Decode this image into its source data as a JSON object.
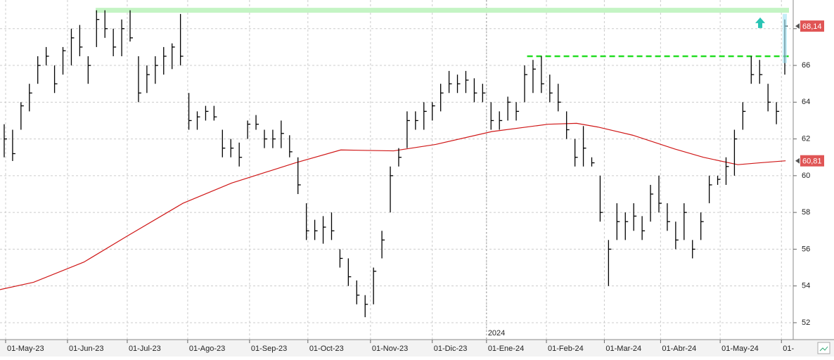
{
  "chart_data": {
    "type": "ohlc",
    "year_label": "2024",
    "color": "#000000",
    "low": [
      61.0,
      60.8,
      62.5,
      63.5,
      65.0,
      66.0,
      64.5,
      65.5,
      66.0,
      66.5,
      65.0,
      67.0,
      67.5,
      66.5,
      66.5,
      67.3,
      64.0,
      64.5,
      65.0,
      65.5,
      65.8,
      66.0,
      62.5,
      62.5,
      63.0,
      63.0,
      61.0,
      61.0,
      60.5,
      62.0,
      62.5,
      61.5,
      61.5,
      61.5,
      61.0,
      59.0,
      56.5,
      56.5,
      56.3,
      56.5,
      55.0,
      54.0,
      53.0,
      52.3,
      53.0,
      55.5,
      58.0,
      60.5,
      61.5,
      62.5,
      62.5,
      63.0,
      63.5,
      64.5,
      64.5,
      64.5,
      64.0,
      64.0,
      62.5,
      62.5,
      63.0,
      63.0,
      64.0,
      64.5,
      64.5,
      64.0,
      63.5,
      62.0,
      60.5,
      60.5,
      60.5,
      57.5,
      54.0,
      56.5,
      56.5,
      57.0,
      56.5,
      57.5,
      58.0,
      57.0,
      56.0,
      56.5,
      55.5,
      56.5,
      58.5,
      59.5,
      59.5,
      60.0,
      62.5,
      65.0,
      65.0,
      63.5,
      62.8,
      65.5
    ],
    "high": [
      62.8,
      62.5,
      64.0,
      65.0,
      66.5,
      67.0,
      66.0,
      67.0,
      68.0,
      68.2,
      66.5,
      69.0,
      69.0,
      68.0,
      68.5,
      69.0,
      66.5,
      66.0,
      66.5,
      67.0,
      67.2,
      68.8,
      64.5,
      63.5,
      63.8,
      63.8,
      62.5,
      62.0,
      61.8,
      63.0,
      63.3,
      62.5,
      62.5,
      63.0,
      62.2,
      61.0,
      58.5,
      57.6,
      57.8,
      58.0,
      56.0,
      55.5,
      54.3,
      53.5,
      55.0,
      57.0,
      60.5,
      61.5,
      63.5,
      63.5,
      64.0,
      64.0,
      65.0,
      65.7,
      65.5,
      65.7,
      65.3,
      65.0,
      64.0,
      63.5,
      64.3,
      64.0,
      66.0,
      66.3,
      66.5,
      65.5,
      65.0,
      63.5,
      62.0,
      62.7,
      61.0,
      60.0,
      56.5,
      58.5,
      58.0,
      58.5,
      57.8,
      59.5,
      60.0,
      58.5,
      57.5,
      58.5,
      56.5,
      58.0,
      60.0,
      60.0,
      61.0,
      62.5,
      64.0,
      66.5,
      66.3,
      65.0,
      64.0,
      68.5
    ],
    "close": [
      62.0,
      61.2,
      63.8,
      64.5,
      66.0,
      66.5,
      65.0,
      66.8,
      67.5,
      67.0,
      66.0,
      68.5,
      68.0,
      67.0,
      68.0,
      67.5,
      64.5,
      65.5,
      66.0,
      66.5,
      67.0,
      66.5,
      63.0,
      63.2,
      63.5,
      63.2,
      61.5,
      61.5,
      61.0,
      62.8,
      62.8,
      62.0,
      62.0,
      62.3,
      61.3,
      59.5,
      57.0,
      57.0,
      57.2,
      57.0,
      55.5,
      54.5,
      53.5,
      53.0,
      54.8,
      56.5,
      60.0,
      61.0,
      63.0,
      63.0,
      63.5,
      63.8,
      64.5,
      65.0,
      65.0,
      65.2,
      64.5,
      64.5,
      63.0,
      63.0,
      64.0,
      63.5,
      65.5,
      65.8,
      65.0,
      64.5,
      64.0,
      62.5,
      61.0,
      61.5,
      60.7,
      58.0,
      56.0,
      57.5,
      57.5,
      57.8,
      57.0,
      59.0,
      58.5,
      57.5,
      56.5,
      58.0,
      56.0,
      57.5,
      59.5,
      59.8,
      60.5,
      62.0,
      63.5,
      65.5,
      65.5,
      64.0,
      63.5,
      68.14
    ],
    "moving_average": {
      "color": "#d01818",
      "x": [
        -0.5,
        3.5,
        9.5,
        14.6,
        21.3,
        27.1,
        34.7,
        40.1,
        46.4,
        51.4,
        58.1,
        64.8,
        68.2,
        70.7,
        74.9,
        79.9,
        83.3,
        87.4,
        90,
        93.1
      ],
      "values": [
        53.8,
        54.2,
        55.3,
        56.7,
        58.5,
        59.6,
        60.7,
        61.4,
        61.35,
        61.7,
        62.4,
        62.8,
        62.85,
        62.65,
        62.2,
        61.45,
        61.0,
        60.6,
        60.7,
        60.81
      ]
    },
    "price_labels": [
      {
        "value": 68.14,
        "label": "68,14"
      },
      {
        "value": 60.81,
        "label": "60,81"
      }
    ],
    "resistance": {
      "color": "#c4f4c4",
      "value": 69.0,
      "start": 10.9
    },
    "breakout_level": {
      "color": "#22dd22",
      "value": 66.5,
      "start": 62.3
    },
    "xlim": [
      -0.5,
      93.5
    ],
    "ylim": [
      51.08,
      69.56
    ],
    "yticks": [
      52,
      54,
      56,
      58,
      60,
      62,
      64,
      66,
      68
    ],
    "xticks": [
      {
        "value": 0.17,
        "label": "01-May-23"
      },
      {
        "value": 7.54,
        "label": "01-Jun-23"
      },
      {
        "value": 14.66,
        "label": "01-Jul-23"
      },
      {
        "value": 21.86,
        "label": "01-Ago-23"
      },
      {
        "value": 29.23,
        "label": "01-Sep-23"
      },
      {
        "value": 36.18,
        "label": "01-Oct-23"
      },
      {
        "value": 43.64,
        "label": "01-Nov-23"
      },
      {
        "value": 51.0,
        "label": "01-Dic-23"
      },
      {
        "value": 57.46,
        "label": "01-Ene-24"
      },
      {
        "value": 64.6,
        "label": "01-Feb-24"
      },
      {
        "value": 71.5,
        "label": "01-Mar-24"
      },
      {
        "value": 78.2,
        "label": "01-Abr-24"
      },
      {
        "value": 85.3,
        "label": "01-May-24"
      },
      {
        "value": 92.6,
        "label": "01-"
      }
    ],
    "grid": true
  }
}
